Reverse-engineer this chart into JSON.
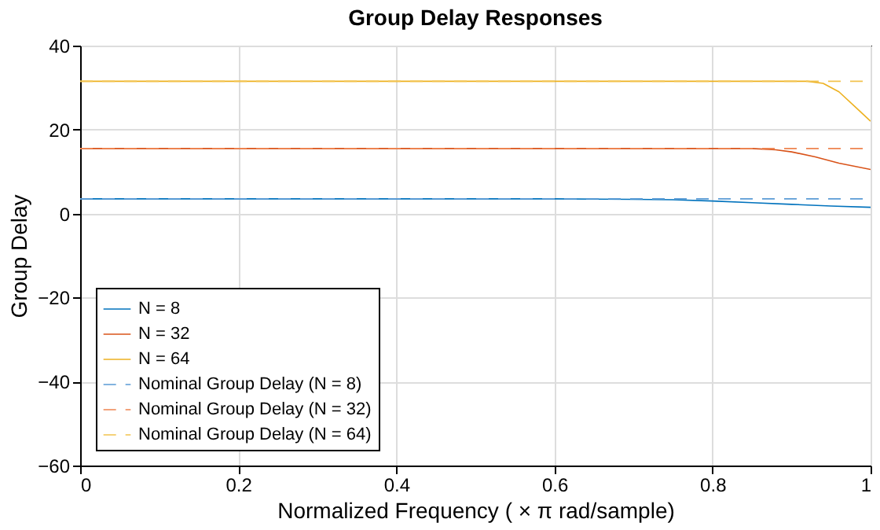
{
  "chart_data": {
    "type": "line",
    "title": "Group Delay Responses",
    "xlabel": "Normalized Frequency ( × π rad/sample)",
    "ylabel": "Group Delay",
    "xlim": [
      0,
      1
    ],
    "ylim": [
      -60,
      40
    ],
    "xticks": [
      0,
      0.2,
      0.4,
      0.6,
      0.8,
      1
    ],
    "yticks": [
      -60,
      -40,
      -20,
      0,
      20,
      40
    ],
    "grid": true,
    "legend": "bottom left",
    "series": [
      {
        "name": "N = 8",
        "color": "#0072bd",
        "line_style": "solid",
        "x": [
          0,
          0.6,
          0.7,
          0.75,
          0.8,
          0.85,
          0.9,
          0.95,
          1
        ],
        "values": [
          3.5,
          3.5,
          3.4,
          3.3,
          3.0,
          2.6,
          2.2,
          1.8,
          1.5
        ]
      },
      {
        "name": "N = 32",
        "color": "#d95319",
        "line_style": "solid",
        "x": [
          0,
          0.85,
          0.88,
          0.9,
          0.93,
          0.96,
          1
        ],
        "values": [
          15.5,
          15.5,
          15.2,
          14.7,
          13.5,
          12,
          10.5
        ]
      },
      {
        "name": "N = 64",
        "color": "#edb120",
        "line_style": "solid",
        "x": [
          0,
          0.92,
          0.94,
          0.96,
          0.98,
          1
        ],
        "values": [
          31.5,
          31.5,
          31.0,
          29,
          25.5,
          22
        ]
      },
      {
        "name": "Nominal Group Delay (N = 8)",
        "color": "#5a9bd5",
        "line_style": "dashed",
        "x": [
          0,
          1
        ],
        "values": [
          3.5,
          3.5
        ]
      },
      {
        "name": "Nominal Group Delay (N = 32)",
        "color": "#ee8450",
        "line_style": "dashed",
        "x": [
          0,
          1
        ],
        "values": [
          15.5,
          15.5
        ]
      },
      {
        "name": "Nominal Group Delay (N = 64)",
        "color": "#f2c34e",
        "line_style": "dashed",
        "x": [
          0,
          1
        ],
        "values": [
          31.5,
          31.5
        ]
      }
    ]
  }
}
